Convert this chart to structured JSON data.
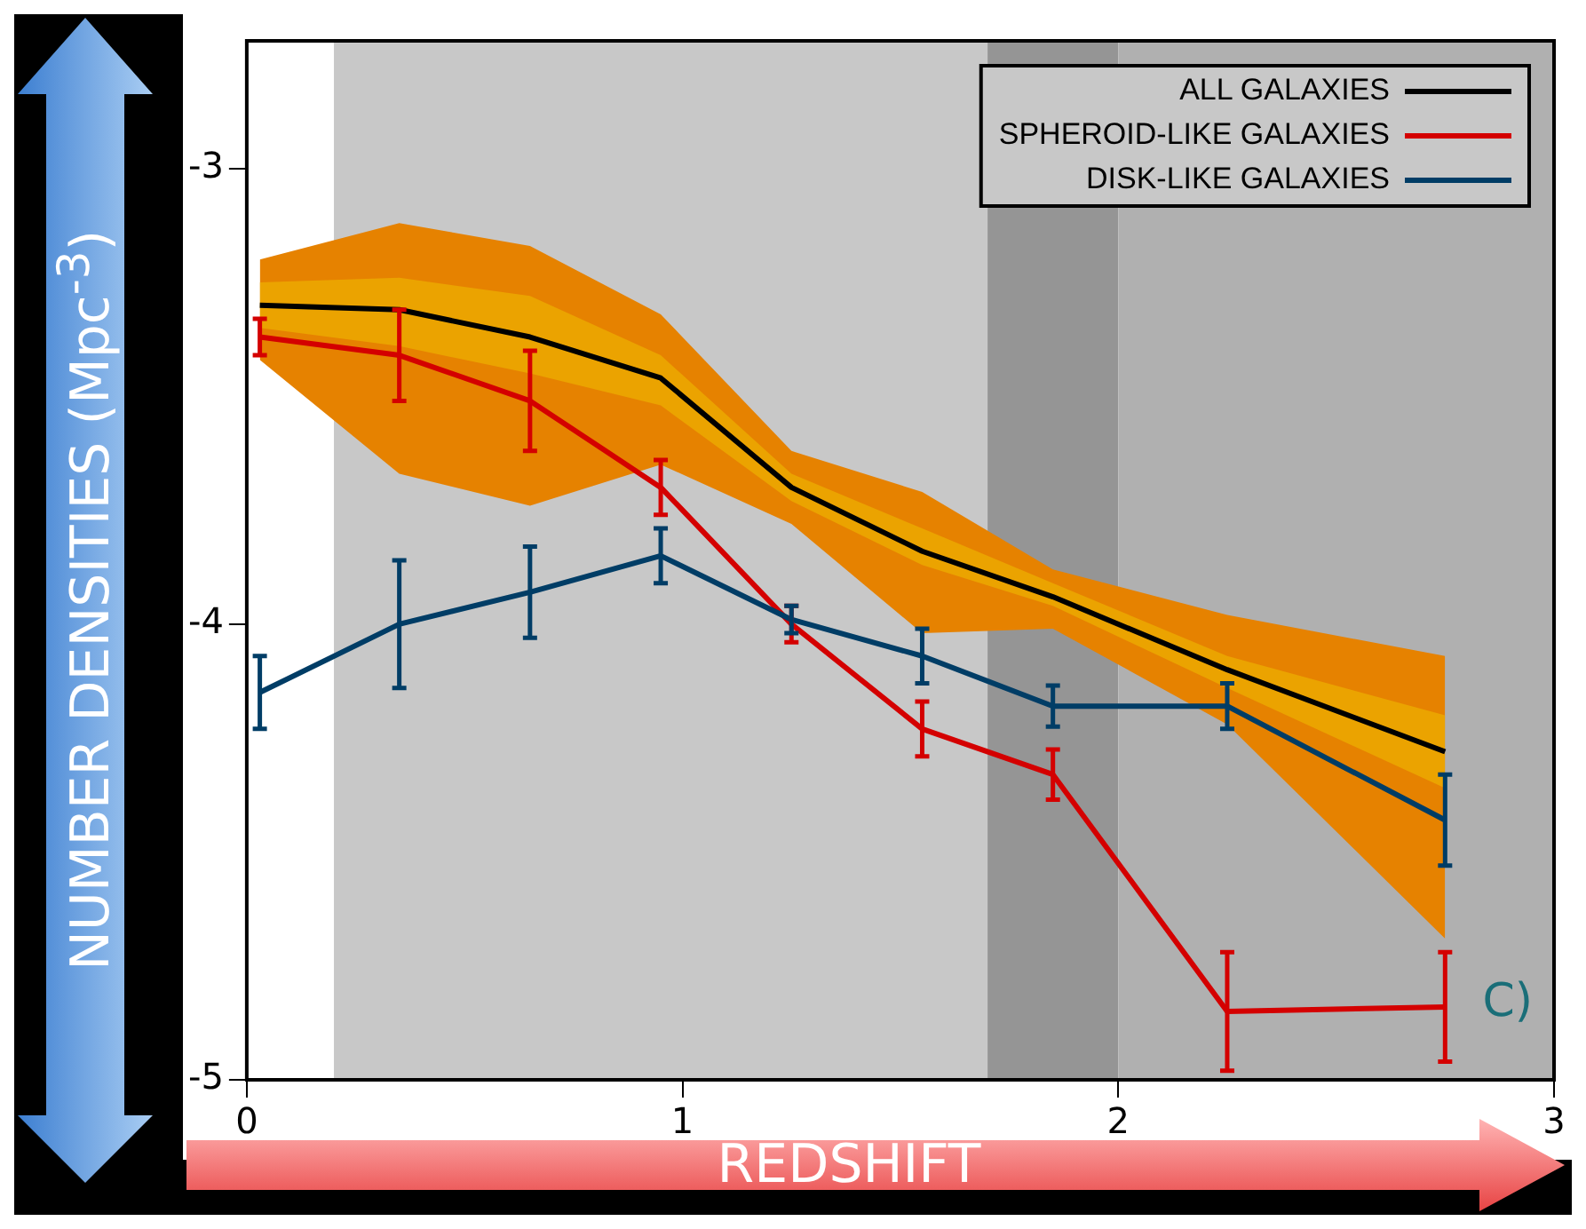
{
  "chart_data": {
    "type": "line",
    "xlabel": "REDSHIFT",
    "ylabel": "NUMBER DENSITIES (Mpc$^{-3}$)",
    "x": [
      0.03,
      0.35,
      0.65,
      0.95,
      1.25,
      1.55,
      1.85,
      2.25,
      2.75
    ],
    "series": [
      {
        "type": "area",
        "color": "#e68200",
        "values": [
          null,
          null,
          null,
          null,
          null,
          null,
          null,
          null,
          null
        ],
        "lower": [
          -3.42,
          -3.67,
          -3.74,
          -3.65,
          -3.78,
          -4.02,
          -4.01,
          -4.22,
          -4.69
        ],
        "upper": [
          -3.2,
          -3.12,
          -3.17,
          -3.32,
          -3.62,
          -3.71,
          -3.88,
          -3.98,
          -4.07
        ]
      },
      {
        "type": "area",
        "color": "#eba300",
        "values": [
          null,
          null,
          null,
          null,
          null,
          null,
          null,
          null,
          null
        ],
        "lower": [
          -3.35,
          -3.39,
          -3.45,
          -3.52,
          -3.73,
          -3.87,
          -3.96,
          -4.14,
          -4.36
        ],
        "upper": [
          -3.25,
          -3.24,
          -3.28,
          -3.41,
          -3.67,
          -3.79,
          -3.91,
          -4.07,
          -4.2
        ]
      },
      {
        "name": "ALL GALAXIES",
        "color": "#000000",
        "values": [
          -3.3,
          -3.31,
          -3.37,
          -3.46,
          -3.7,
          -3.84,
          -3.94,
          -4.1,
          -4.28
        ]
      },
      {
        "name": "SPHEROID-LIKE GALAXIES",
        "color": "#d40000",
        "values": [
          -3.37,
          -3.41,
          -3.51,
          -3.7,
          -4.0,
          -4.23,
          -4.33,
          -4.85,
          -4.84
        ],
        "errors": [
          0.04,
          0.1,
          0.11,
          0.06,
          0.04,
          0.06,
          0.055,
          0.13,
          0.12
        ]
      },
      {
        "name": "DISK-LIKE GALAXIES",
        "color": "#003d66",
        "values": [
          -4.15,
          -4.0,
          -3.93,
          -3.85,
          -3.99,
          -4.07,
          -4.18,
          -4.18,
          -4.43
        ],
        "errors": [
          0.08,
          0.14,
          0.1,
          0.06,
          0.03,
          0.06,
          0.045,
          0.05,
          0.1
        ]
      }
    ],
    "bands": [
      {
        "axis": "x",
        "from": 0.2,
        "to": 1.7,
        "color": "#c8c8c8"
      },
      {
        "axis": "x",
        "from": 1.7,
        "to": 2.0,
        "color": "#959595"
      },
      {
        "axis": "x",
        "from": 2.0,
        "to": 3,
        "color": "#b0b0b0"
      }
    ],
    "xlim": [
      0,
      3
    ],
    "xticks": [
      0,
      1,
      2,
      3
    ],
    "ylim": [
      -5,
      -2.72
    ],
    "yticks": [
      -3,
      -4,
      -5
    ],
    "grid": false,
    "legend": "top right",
    "annotations": [
      "C)"
    ]
  }
}
